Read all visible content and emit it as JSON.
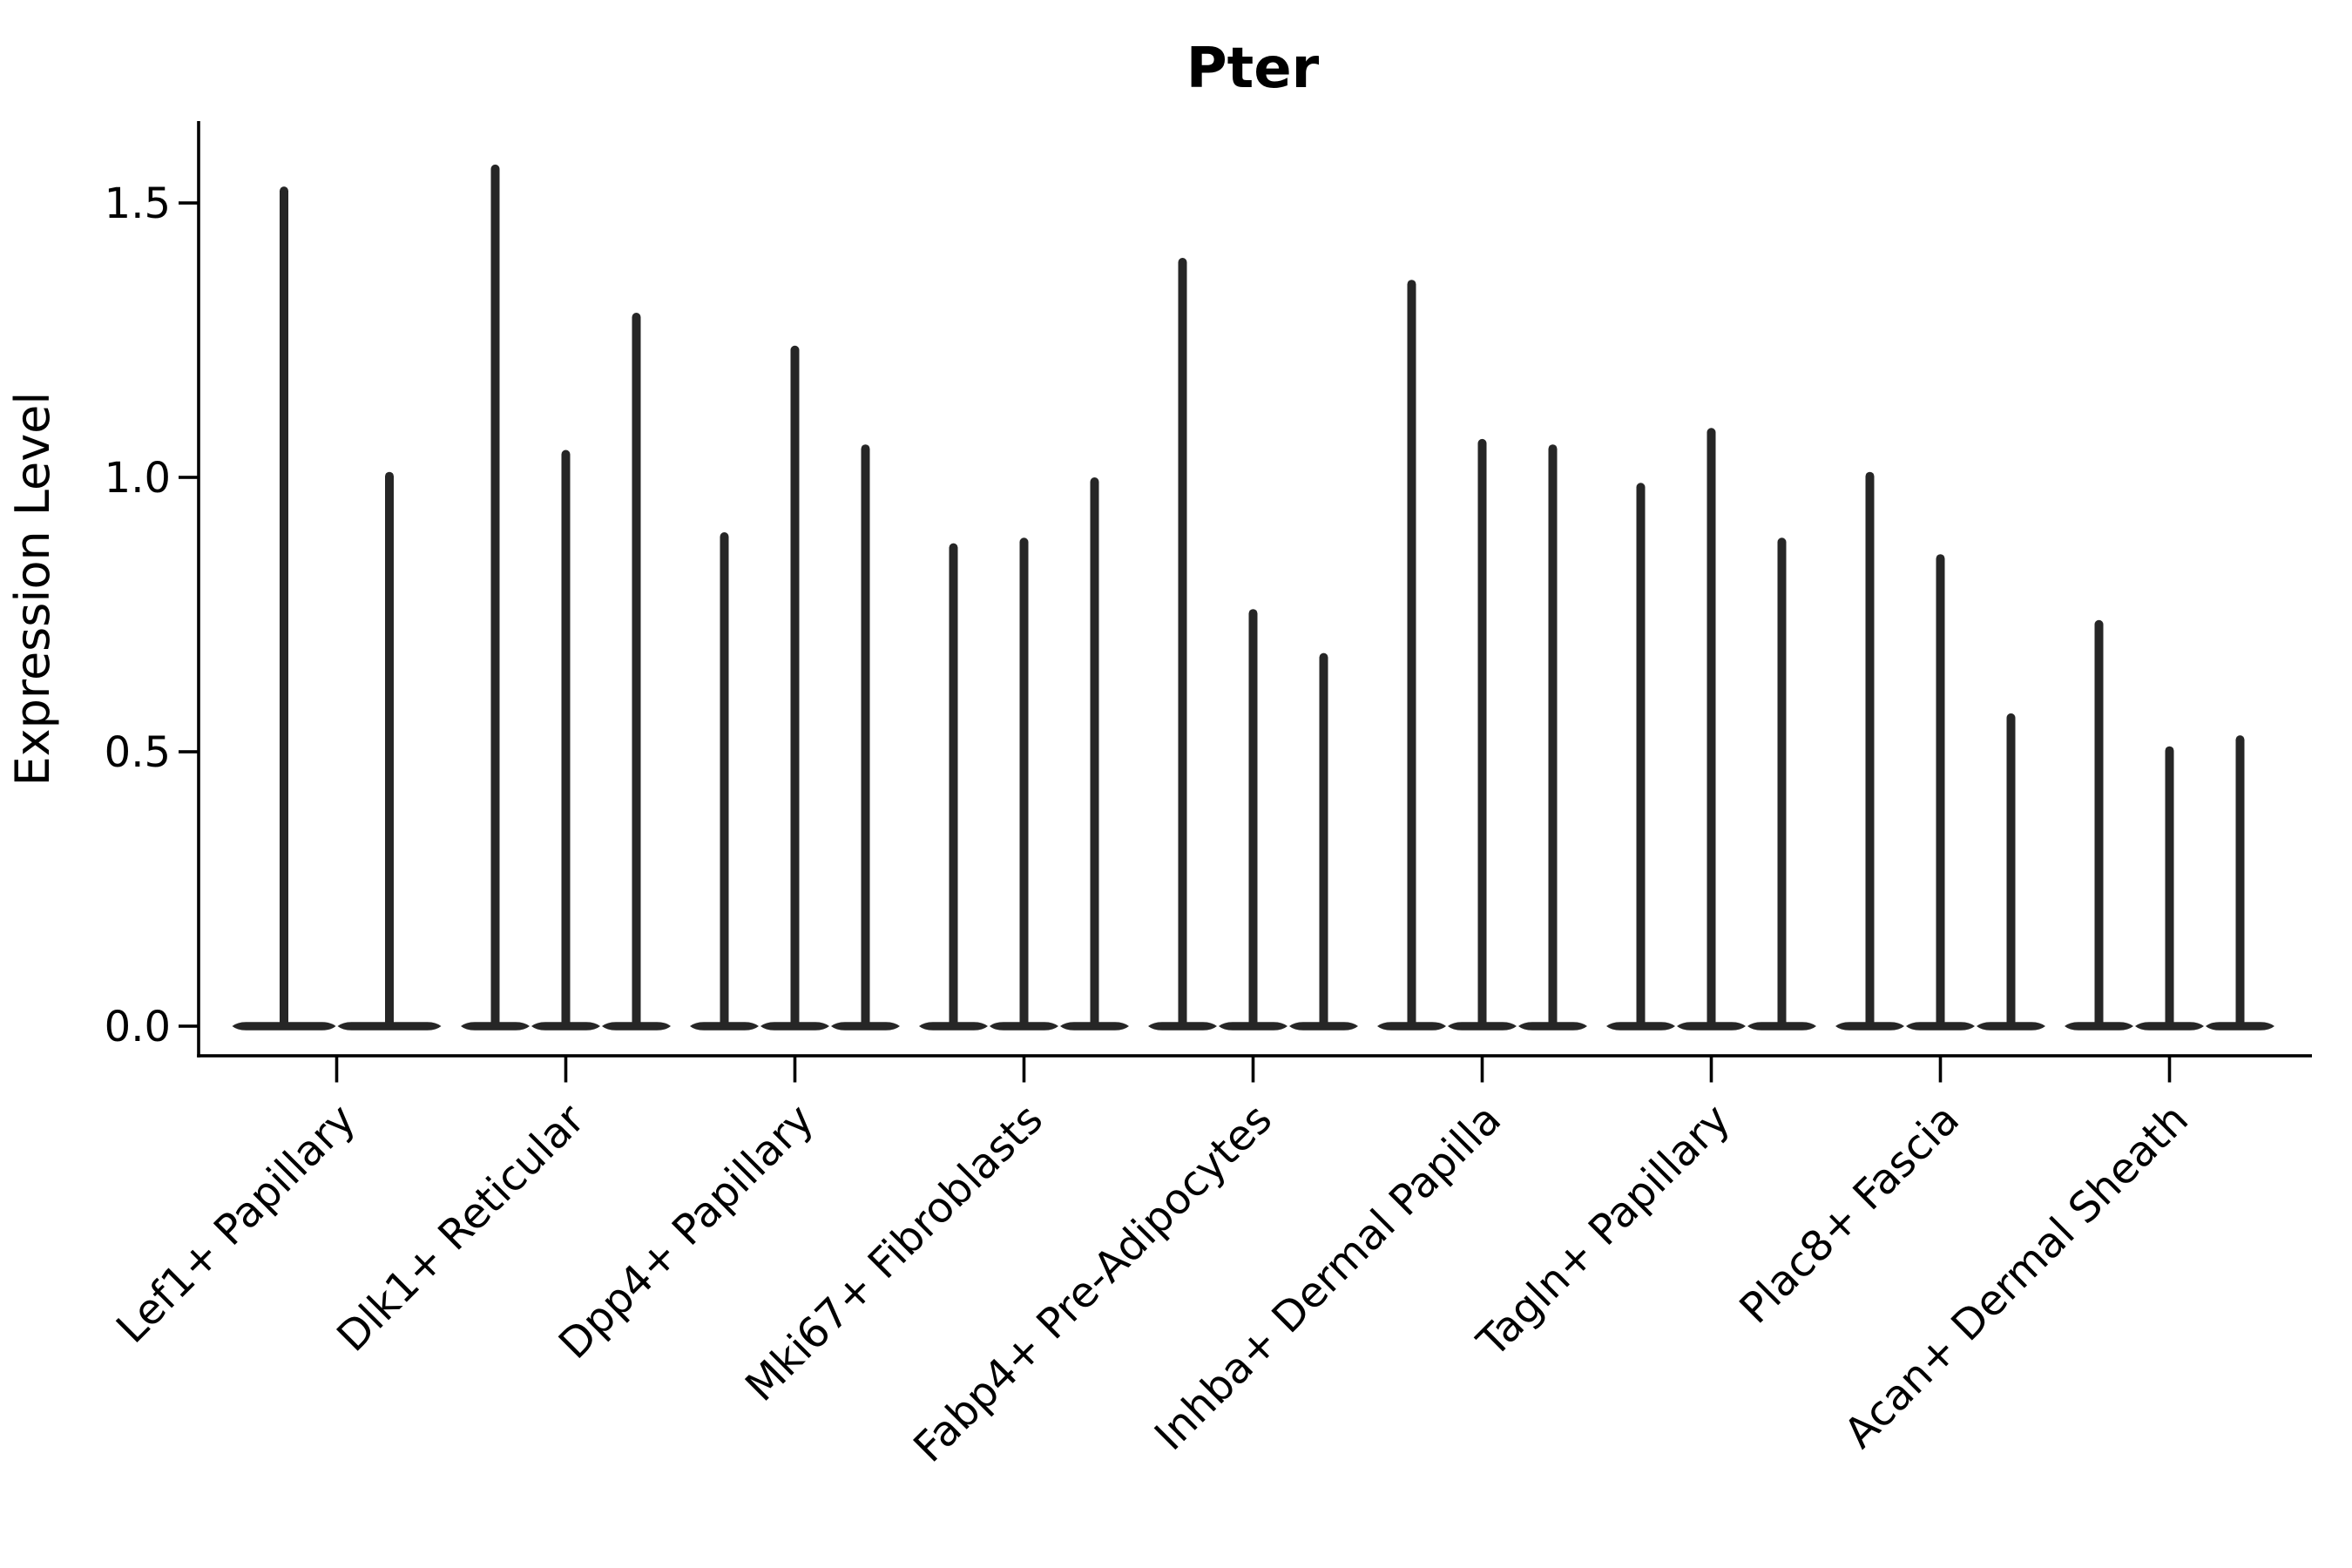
{
  "title": "Pter",
  "colors": {
    "ink": "#262626",
    "text": "#000000",
    "background": "#ffffff"
  },
  "chart_data": {
    "type": "violin",
    "title": "Pter",
    "xlabel": "",
    "ylabel": "Expression Level",
    "yticks": [
      0.0,
      0.5,
      1.0,
      1.5
    ],
    "ytick_labels": [
      "0.0",
      "0.5",
      "1.0",
      "1.5"
    ],
    "ylim": [
      -0.05,
      1.65
    ],
    "grid": false,
    "legend": "none",
    "x_tick_rotation": 45,
    "violin_style": "zero-inflated: wide flat density disk at 0 with thin spike up to per-violin maximum",
    "categories": [
      {
        "label": "Lef1+ Papillary",
        "violin_maxima": [
          1.53,
          1.01
        ]
      },
      {
        "label": "Dlk1+ Reticular",
        "violin_maxima": [
          1.57,
          1.05,
          1.3
        ]
      },
      {
        "label": "Dpp4+ Papillary",
        "violin_maxima": [
          0.9,
          1.24,
          1.06
        ]
      },
      {
        "label": "Mki67+ Fibroblasts",
        "violin_maxima": [
          0.88,
          0.89,
          1.0
        ]
      },
      {
        "label": "Fabp4+ Pre-Adipocytes",
        "violin_maxima": [
          1.4,
          0.76,
          0.68
        ]
      },
      {
        "label": "Inhba+ Dermal Papilla",
        "violin_maxima": [
          1.36,
          1.07,
          1.06
        ]
      },
      {
        "label": "Tagln+ Papillary",
        "violin_maxima": [
          0.99,
          1.09,
          0.89
        ]
      },
      {
        "label": "Plac8+ Fascia",
        "violin_maxima": [
          1.01,
          0.86,
          0.57
        ]
      },
      {
        "label": "Acan+ Dermal Sheath",
        "violin_maxima": [
          0.74,
          0.51,
          0.53
        ]
      }
    ]
  }
}
